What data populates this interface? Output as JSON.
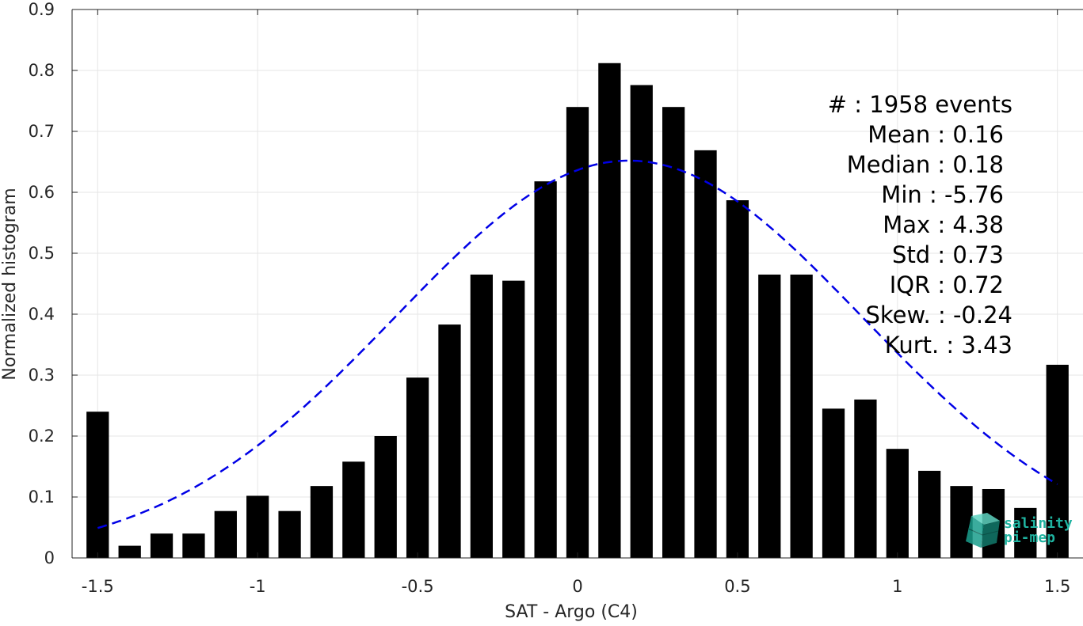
{
  "chart_data": {
    "type": "bar",
    "xlabel": "SAT - Argo (C4)",
    "ylabel": "Normalized histogram",
    "xlim": [
      -1.58,
      1.58
    ],
    "ylim": [
      0,
      0.9
    ],
    "xticks": [
      -1.5,
      -1,
      -0.5,
      0,
      0.5,
      1,
      1.5
    ],
    "xtick_labels": [
      "-1.5",
      "-1",
      "-0.5",
      "0",
      "0.5",
      "1",
      "1.5"
    ],
    "yticks": [
      0,
      0.1,
      0.2,
      0.3,
      0.4,
      0.5,
      0.6,
      0.7,
      0.8,
      0.9
    ],
    "ytick_labels": [
      "0",
      "0.1",
      "0.2",
      "0.3",
      "0.4",
      "0.5",
      "0.6",
      "0.7",
      "0.8",
      "0.9"
    ],
    "grid": true,
    "bar_color": "#000000",
    "fit_color": "#0000e6",
    "bins": [
      -1.5,
      -1.4,
      -1.3,
      -1.2,
      -1.1,
      -1.0,
      -0.9,
      -0.8,
      -0.7,
      -0.6,
      -0.5,
      -0.4,
      -0.3,
      -0.2,
      -0.1,
      0.0,
      0.1,
      0.2,
      0.3,
      0.4,
      0.5,
      0.6,
      0.7,
      0.8,
      0.9,
      1.0,
      1.1,
      1.2,
      1.3,
      1.4,
      1.5
    ],
    "values": [
      0.24,
      0.02,
      0.04,
      0.04,
      0.077,
      0.102,
      0.077,
      0.118,
      0.158,
      0.2,
      0.296,
      0.383,
      0.465,
      0.455,
      0.618,
      0.74,
      0.812,
      0.776,
      0.74,
      0.669,
      0.587,
      0.465,
      0.465,
      0.245,
      0.26,
      0.179,
      0.143,
      0.118,
      0.113,
      0.082,
      0.317
    ],
    "fit": {
      "type": "gaussian-dashed",
      "mean": 0.16,
      "std": 0.73,
      "x_range": [
        -1.5,
        1.5
      ]
    },
    "annotations": [
      "#  : 1958 events",
      "Mean : 0.16",
      "Median : 0.18",
      "Min : -5.76",
      "Max : 4.38",
      "Std : 0.73",
      "IQR : 0.72",
      "Skew. : -0.24",
      "Kurt. : 3.43"
    ]
  },
  "logo": {
    "line1": "salinity",
    "line2": "pi-mep",
    "color": "#1fb3a0"
  }
}
